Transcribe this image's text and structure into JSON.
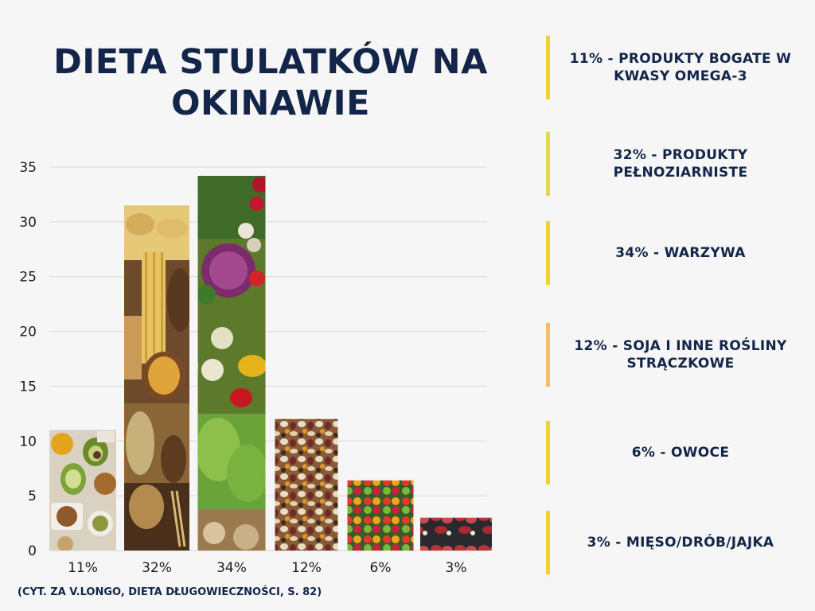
{
  "title": "DIETA STULATKÓW NA OKINAWIE",
  "source_note": "(CYT. ZA V.LONGO, DIETA DŁUGOWIECZNOŚCI, S. 82)",
  "legend": [
    {
      "text": "11% - PRODUKTY BOGATE W KWASY OMEGA-3",
      "color": "#f2d22e"
    },
    {
      "text": "32% - PRODUKTY PEŁNOZIARNISTE",
      "color": "#e4d84e"
    },
    {
      "text": "34% - WARZYWA",
      "color": "#f2d22e"
    },
    {
      "text": "12% - SOJA I INNE ROŚLINY STRĄCZKOWE",
      "color": "#f6bd6a"
    },
    {
      "text": "6% - OWOCE",
      "color": "#f2d22e"
    },
    {
      "text": "3% - MIĘSO/DRÓB/JAJKA",
      "color": "#f2d22e"
    }
  ],
  "chart_data": {
    "type": "bar",
    "categories": [
      "11%",
      "32%",
      "34%",
      "12%",
      "6%",
      "3%"
    ],
    "values": [
      11,
      31.5,
      34.2,
      12,
      6.4,
      3
    ],
    "ylim": [
      0,
      35
    ],
    "yticks": [
      "0",
      "5",
      "10",
      "15",
      "20",
      "25",
      "30",
      "35"
    ],
    "grid": true,
    "bar_fills": [
      "omega-3 foods photo",
      "whole grains photo",
      "vegetables photo",
      "legumes photo",
      "fruit photo",
      "meat photo"
    ]
  }
}
